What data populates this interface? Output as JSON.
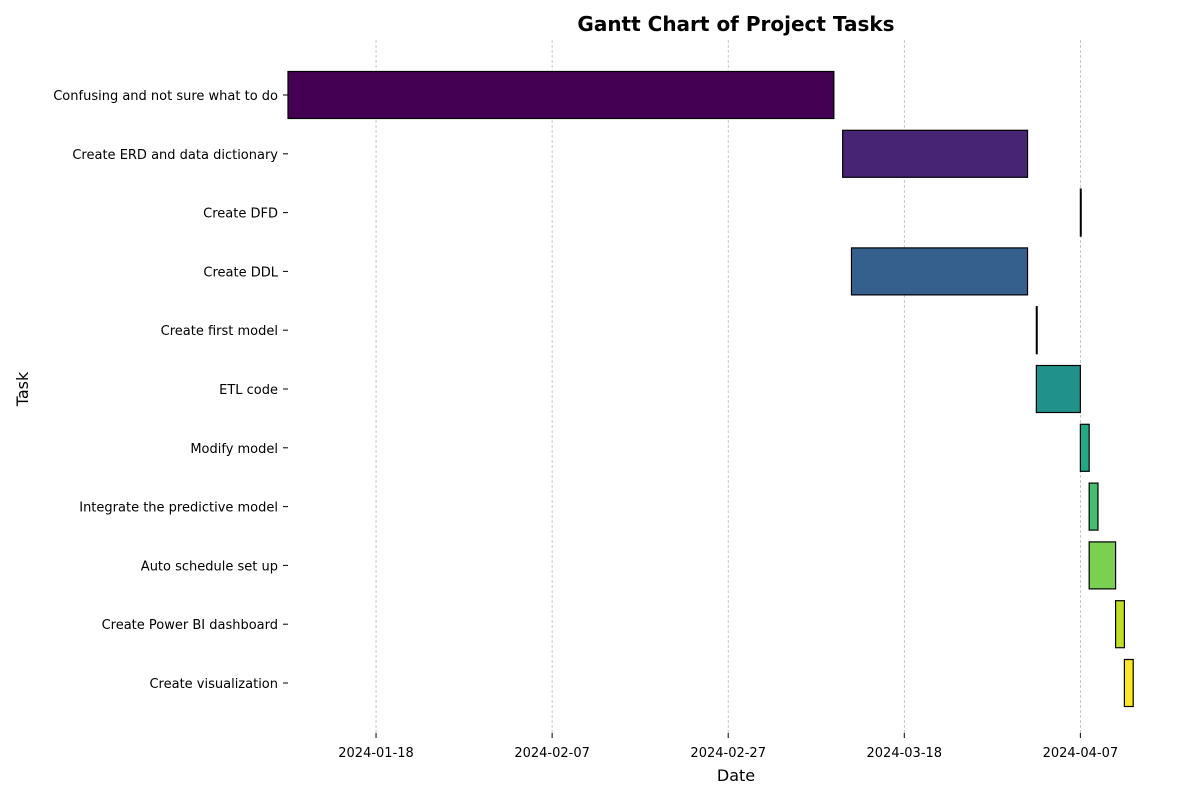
{
  "chart_data": {
    "type": "gantt",
    "title": "Gantt Chart of Project Tasks",
    "xlabel": "Date",
    "ylabel": "Task",
    "x_ticks": [
      "2024-01-18",
      "2024-02-07",
      "2024-02-27",
      "2024-03-18",
      "2024-04-07"
    ],
    "x_range": [
      "2024-01-08",
      "2024-04-13"
    ],
    "grid": "vertical dashed",
    "tasks": [
      {
        "name": "Confusing and not sure what to do",
        "start": "2024-01-08",
        "end": "2024-03-10",
        "color": "#440154"
      },
      {
        "name": "Create ERD and data dictionary",
        "start": "2024-03-11",
        "end": "2024-04-01",
        "color": "#482475"
      },
      {
        "name": "Create DFD",
        "start": "2024-04-07",
        "end": "2024-04-07",
        "color": "#414487"
      },
      {
        "name": "Create DDL",
        "start": "2024-03-12",
        "end": "2024-04-01",
        "color": "#355f8d"
      },
      {
        "name": "Create first model",
        "start": "2024-04-02",
        "end": "2024-04-02",
        "color": "#2a788e"
      },
      {
        "name": "ETL code",
        "start": "2024-04-02",
        "end": "2024-04-07",
        "color": "#21918c"
      },
      {
        "name": "Modify model",
        "start": "2024-04-07",
        "end": "2024-04-08",
        "color": "#22a884"
      },
      {
        "name": "Integrate the predictive model",
        "start": "2024-04-08",
        "end": "2024-04-09",
        "color": "#44bf70"
      },
      {
        "name": "Auto schedule set up",
        "start": "2024-04-08",
        "end": "2024-04-11",
        "color": "#7ad151"
      },
      {
        "name": "Create Power BI dashboard",
        "start": "2024-04-11",
        "end": "2024-04-12",
        "color": "#bddf26"
      },
      {
        "name": "Create visualization",
        "start": "2024-04-12",
        "end": "2024-04-13",
        "color": "#fde725"
      }
    ]
  }
}
